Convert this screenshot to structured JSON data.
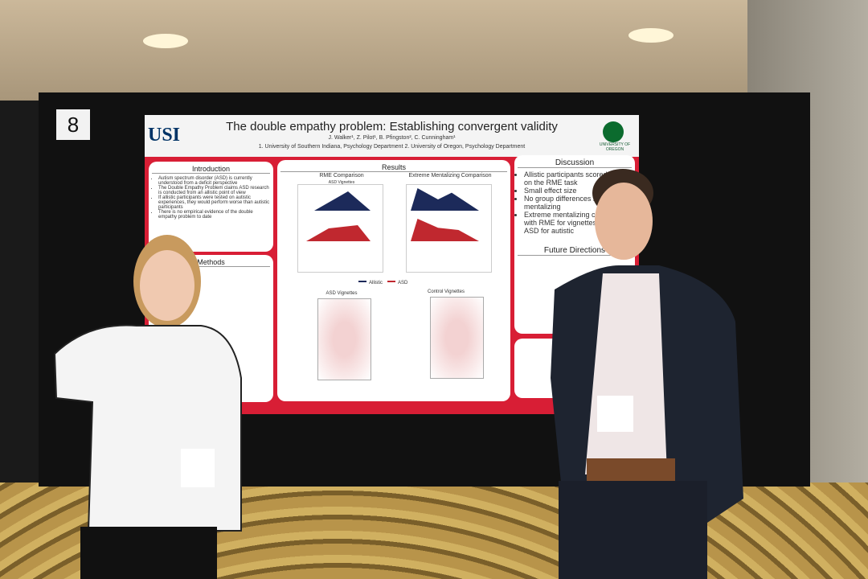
{
  "booth_number": "8",
  "poster": {
    "title": "The double empathy problem: Establishing convergent validity",
    "authors": "J. Walker¹, Z. Pilot¹, B. Pfingston², C. Cunningham¹",
    "affiliations": "1. University of Southern Indiana, Psychology Department 2. University of Oregon, Psychology Department",
    "logo_left": "USI",
    "logo_right": "UNIVERSITY OF OREGON",
    "introduction": {
      "heading": "Introduction",
      "bullets": [
        "Autism spectrum disorder (ASD) is currently understood from a deficit perspective",
        "The Double Empathy Problem claims ASD research is conducted from an allistic point of view",
        "If allistic participants were tested on autistic experiences, they would perform worse than autistic participants",
        "There is no empirical evidence of the double empathy problem to date"
      ]
    },
    "methods": {
      "heading": "Methods"
    },
    "results": {
      "heading": "Results",
      "panel_1": "RME Comparison",
      "panel_2": "Extreme Mentalizing Comparison",
      "subtitle": "ASD Vignettes",
      "legend": [
        "Allistic",
        "ASD"
      ],
      "panel_3": "ASD Vignettes",
      "panel_4": "Control Vignettes"
    },
    "discussion": {
      "heading": "Discussion",
      "bullets": [
        "Allistic participants scored higher on the RME task",
        "Small effect size",
        "No group differences in mentalizing",
        "Extreme mentalizing correlated with RME for vignettes, but not ASD for autistic"
      ]
    },
    "future": {
      "heading": "Future Directions"
    }
  }
}
